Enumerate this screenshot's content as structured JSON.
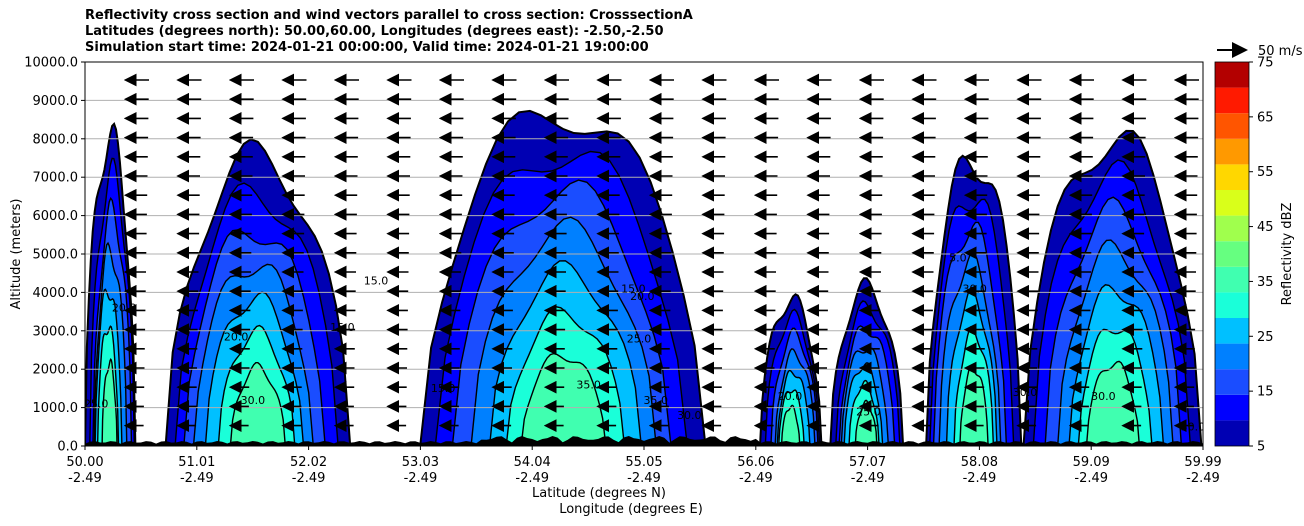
{
  "chart_data": {
    "type": "contour",
    "title_lines": [
      "Reflectivity cross section and wind vectors parallel to cross section: CrosssectionA",
      "Latitudes (degrees north): 50.00,60.00, Longitudes (degrees east): -2.50,-2.50",
      "Simulation start time: 2024-01-21 00:00:00, Valid time: 2024-01-21 19:00:00"
    ],
    "ylabel": "Altitude (meters)",
    "xlabel_lines": [
      "Latitude (degrees N)",
      "Longitude (degrees E)"
    ],
    "ylim": [
      0,
      10000
    ],
    "y_ticks": [
      "0.0",
      "1000.0",
      "2000.0",
      "3000.0",
      "4000.0",
      "5000.0",
      "6000.0",
      "7000.0",
      "8000.0",
      "9000.0",
      "10000.0"
    ],
    "x_tick_labels": [
      [
        "50.00",
        "-2.49"
      ],
      [
        "51.01",
        "-2.49"
      ],
      [
        "52.02",
        "-2.49"
      ],
      [
        "53.03",
        "-2.49"
      ],
      [
        "54.04",
        "-2.49"
      ],
      [
        "55.05",
        "-2.49"
      ],
      [
        "56.06",
        "-2.49"
      ],
      [
        "57.07",
        "-2.49"
      ],
      [
        "58.08",
        "-2.49"
      ],
      [
        "59.09",
        "-2.49"
      ],
      [
        "59.99",
        "-2.49"
      ]
    ],
    "grid": "horizontal",
    "wind_vector_key": "50 m/s",
    "colorbar": {
      "label": "Reflectivity dBZ",
      "levels": [
        5,
        10,
        15,
        20,
        25,
        30,
        35,
        40,
        45,
        50,
        55,
        60,
        65,
        70,
        75
      ],
      "tick_labels": [
        "5",
        "15",
        "25",
        "35",
        "45",
        "55",
        "65",
        "75"
      ],
      "colors": [
        "#0000b3",
        "#0000ff",
        "#1a4dff",
        "#0080ff",
        "#00c0ff",
        "#1affd9",
        "#40ffb0",
        "#66ff80",
        "#a0ff4d",
        "#d9ff1a",
        "#ffd700",
        "#ff9900",
        "#ff5500",
        "#ff1a00",
        "#b30000"
      ]
    },
    "contour_labels": [
      "5.0",
      "15.0",
      "20.0",
      "25.0",
      "30.0",
      "35.0",
      "40.0"
    ],
    "cells": [
      {
        "x0": 50.0,
        "x1": 50.45,
        "top": 8000
      },
      {
        "x0": 50.7,
        "x1": 52.35,
        "top": 7500
      },
      {
        "x0": 53.0,
        "x1": 55.55,
        "top": 8800
      },
      {
        "x0": 56.05,
        "x1": 56.6,
        "top": 3800
      },
      {
        "x0": 56.65,
        "x1": 57.3,
        "top": 4100
      },
      {
        "x0": 57.5,
        "x1": 58.35,
        "top": 7500
      },
      {
        "x0": 58.4,
        "x1": 59.99,
        "top": 8000
      }
    ]
  }
}
